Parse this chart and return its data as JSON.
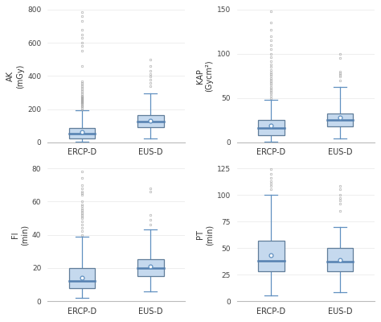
{
  "subplots": [
    {
      "ylabel": "AK\n(mGy)",
      "ylim": [
        0,
        800
      ],
      "yticks": [
        0,
        200,
        400,
        600,
        800
      ],
      "groups": [
        "ERCP-D",
        "EUS-D"
      ],
      "ercp": {
        "q1": 25,
        "median": 50,
        "q3": 85,
        "whisker_low": 5,
        "whisker_high": 195,
        "mean": 62,
        "outliers": [
          200,
          210,
          215,
          220,
          230,
          235,
          240,
          245,
          250,
          255,
          260,
          265,
          270,
          275,
          280,
          290,
          300,
          310,
          320,
          330,
          340,
          350,
          360,
          370,
          460,
          550,
          580,
          600,
          630,
          650,
          680,
          730,
          760,
          785
        ]
      },
      "eus": {
        "q1": 90,
        "median": 125,
        "q3": 165,
        "whisker_low": 25,
        "whisker_high": 295,
        "mean": 130,
        "outliers": [
          340,
          360,
          375,
          395,
          410,
          430,
          460,
          500
        ]
      }
    },
    {
      "ylabel": "KAP\n(Gycm²)",
      "ylim": [
        0,
        150
      ],
      "yticks": [
        0,
        50,
        100,
        150
      ],
      "groups": [
        "ERCP-D",
        "EUS-D"
      ],
      "ercp": {
        "q1": 8,
        "median": 16,
        "q3": 25,
        "whisker_low": 1,
        "whisker_high": 48,
        "mean": 19,
        "outliers": [
          50,
          53,
          55,
          57,
          59,
          61,
          63,
          65,
          67,
          69,
          71,
          73,
          75,
          77,
          79,
          82,
          85,
          88,
          92,
          96,
          100,
          105,
          110,
          115,
          120,
          127,
          135,
          148
        ]
      },
      "eus": {
        "q1": 18,
        "median": 25,
        "q3": 33,
        "whisker_low": 4,
        "whisker_high": 63,
        "mean": 28,
        "outliers": [
          70,
          74,
          76,
          78,
          80,
          95,
          100
        ]
      }
    },
    {
      "ylabel": "FI\n(min)",
      "ylim": [
        0,
        80
      ],
      "yticks": [
        0,
        20,
        40,
        60,
        80
      ],
      "groups": [
        "ERCP-D",
        "EUS-D"
      ],
      "ercp": {
        "q1": 8,
        "median": 12,
        "q3": 20,
        "whisker_low": 2,
        "whisker_high": 39,
        "mean": 14,
        "outliers": [
          40,
          42,
          44,
          46,
          48,
          50,
          51,
          52,
          53,
          54,
          55,
          56,
          57,
          58,
          60,
          64,
          65,
          66,
          68,
          70,
          74,
          78
        ]
      },
      "eus": {
        "q1": 15,
        "median": 20,
        "q3": 25,
        "whisker_low": 6,
        "whisker_high": 43,
        "mean": 21,
        "outliers": [
          46,
          49,
          52,
          66,
          68
        ]
      }
    },
    {
      "ylabel": "PT\n(min)",
      "ylim": [
        0,
        125
      ],
      "yticks": [
        0,
        25,
        50,
        75,
        100,
        125
      ],
      "groups": [
        "ERCP-D",
        "EUS-D"
      ],
      "ercp": {
        "q1": 28,
        "median": 38,
        "q3": 57,
        "whisker_low": 5,
        "whisker_high": 100,
        "mean": 43,
        "outliers": [
          105,
          108,
          111,
          113,
          116,
          120,
          124
        ]
      },
      "eus": {
        "q1": 28,
        "median": 37,
        "q3": 50,
        "whisker_low": 8,
        "whisker_high": 70,
        "mean": 39,
        "outliers": [
          85,
          92,
          95,
          97,
          100,
          105,
          108
        ]
      }
    }
  ],
  "box_facecolor": "#c5d9ee",
  "box_edgecolor": "#607d99",
  "median_color": "#5580b0",
  "whisker_color": "#6090c0",
  "mean_marker_color": "#6090c0",
  "outlier_color": "#999999",
  "background_color": "#ffffff",
  "axis_color": "#bbbbbb",
  "tick_color": "#444444",
  "label_color": "#333333",
  "box_width": 0.38
}
